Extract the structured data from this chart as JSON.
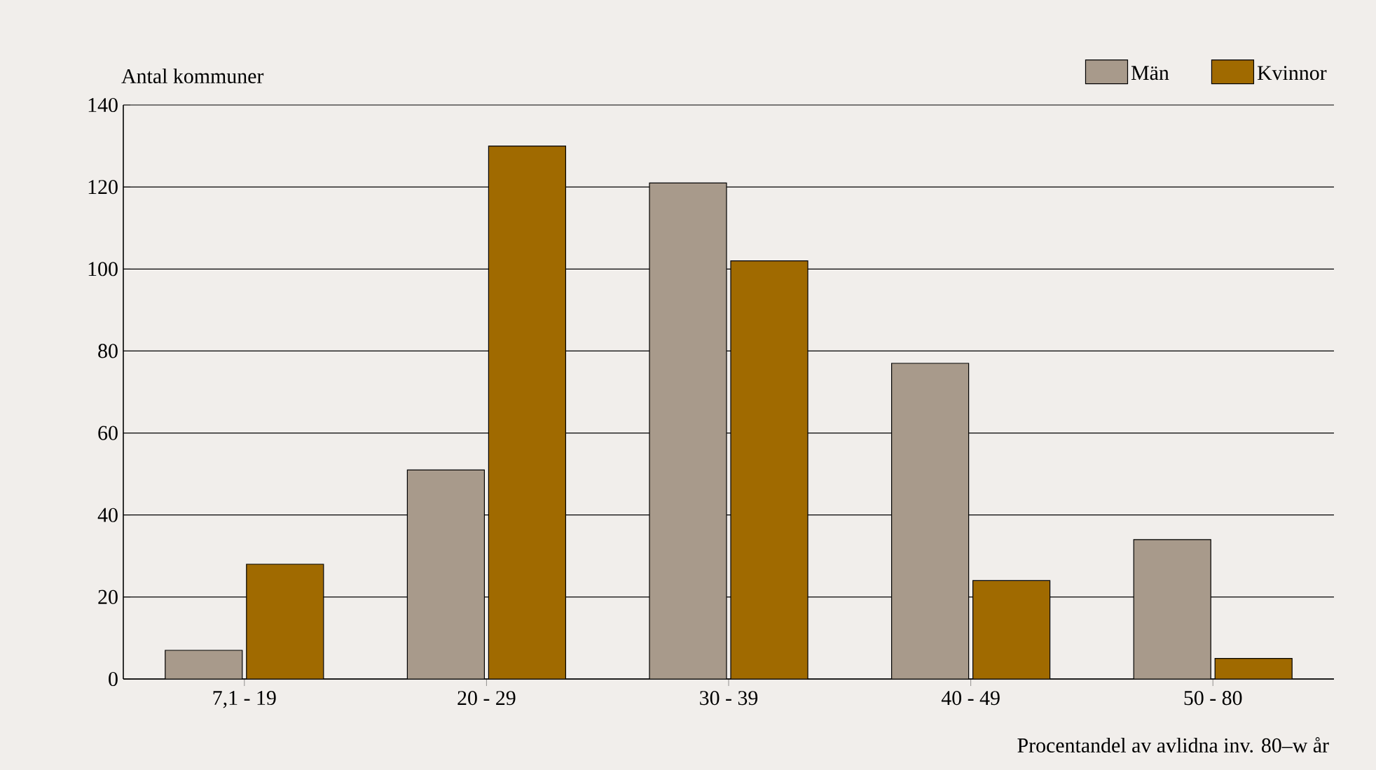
{
  "chart_data": {
    "type": "bar",
    "ylabel": "Antal kommuner",
    "xlabel": "Procentandel av avlidna inv. 80–w år",
    "categories": [
      "7,1 - 19",
      "20 - 29",
      "30 - 39",
      "40 - 49",
      "50 - 80"
    ],
    "series": [
      {
        "name": "Män",
        "color": "#a89a8b",
        "values": [
          7,
          51,
          121,
          77,
          34
        ]
      },
      {
        "name": "Kvinnor",
        "color": "#a06a00",
        "values": [
          28,
          130,
          102,
          24,
          5
        ]
      }
    ],
    "ylim": [
      0,
      140
    ],
    "yticks": [
      0,
      20,
      40,
      60,
      80,
      100,
      120,
      140
    ],
    "grid": "y",
    "legend": "top right"
  }
}
